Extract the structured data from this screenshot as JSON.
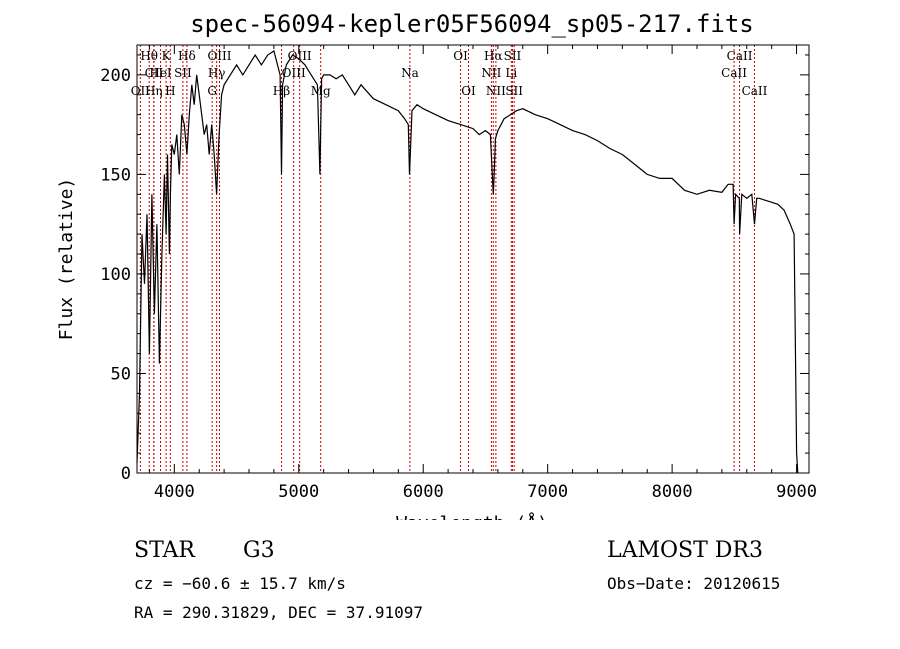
{
  "chart_data": {
    "type": "line",
    "title": "spec-56094-kepler05F56094_sp05-217.fits",
    "xlabel": "Wavelength (Å)",
    "ylabel": "Flux (relative)",
    "xlim": [
      3700,
      9100
    ],
    "ylim": [
      0,
      215
    ],
    "x_ticks": [
      4000,
      5000,
      6000,
      7000,
      8000,
      9000
    ],
    "y_ticks": [
      0,
      50,
      100,
      150,
      200
    ],
    "line_color": "#000000",
    "marker_color": "#cc0000",
    "spectrum": {
      "name": "Flux",
      "x": [
        3700,
        3720,
        3740,
        3760,
        3780,
        3800,
        3820,
        3840,
        3860,
        3880,
        3900,
        3920,
        3934,
        3945,
        3960,
        3968,
        3980,
        4000,
        4020,
        4040,
        4060,
        4080,
        4101,
        4120,
        4140,
        4160,
        4180,
        4200,
        4220,
        4240,
        4260,
        4280,
        4300,
        4320,
        4340,
        4360,
        4380,
        4400,
        4450,
        4500,
        4550,
        4600,
        4650,
        4700,
        4750,
        4800,
        4850,
        4861,
        4870,
        4900,
        4950,
        5000,
        5050,
        5100,
        5150,
        5170,
        5183,
        5200,
        5250,
        5300,
        5350,
        5400,
        5450,
        5500,
        5600,
        5700,
        5800,
        5850,
        5880,
        5890,
        5896,
        5910,
        5950,
        6000,
        6100,
        6200,
        6300,
        6400,
        6450,
        6500,
        6540,
        6555,
        6563,
        6570,
        6580,
        6600,
        6650,
        6700,
        6750,
        6800,
        6900,
        7000,
        7100,
        7200,
        7300,
        7400,
        7500,
        7600,
        7700,
        7800,
        7900,
        8000,
        8100,
        8200,
        8300,
        8400,
        8450,
        8490,
        8498,
        8510,
        8540,
        8542,
        8560,
        8600,
        8640,
        8662,
        8680,
        8700,
        8750,
        8800,
        8850,
        8900,
        8950,
        8980,
        9000,
        9010
      ],
      "values": [
        5,
        40,
        120,
        95,
        130,
        60,
        140,
        80,
        125,
        55,
        110,
        150,
        120,
        160,
        110,
        140,
        165,
        160,
        170,
        150,
        180,
        175,
        160,
        180,
        195,
        185,
        200,
        190,
        180,
        170,
        175,
        160,
        175,
        160,
        140,
        170,
        190,
        195,
        200,
        205,
        200,
        205,
        210,
        205,
        210,
        212,
        200,
        150,
        195,
        205,
        210,
        208,
        205,
        200,
        195,
        150,
        198,
        200,
        200,
        198,
        200,
        195,
        190,
        195,
        188,
        185,
        182,
        178,
        175,
        150,
        160,
        182,
        185,
        183,
        180,
        177,
        175,
        173,
        170,
        172,
        170,
        150,
        140,
        150,
        168,
        172,
        178,
        180,
        182,
        183,
        180,
        178,
        175,
        172,
        170,
        167,
        163,
        160,
        155,
        150,
        148,
        148,
        142,
        140,
        142,
        141,
        145,
        145,
        125,
        140,
        138,
        120,
        140,
        138,
        140,
        125,
        138,
        138,
        137,
        136,
        135,
        132,
        125,
        120,
        10,
        0
      ]
    },
    "line_markers": [
      {
        "label": "Hθ",
        "x": 3798,
        "row": 0
      },
      {
        "label": "CII",
        "x": 3836,
        "row": 1
      },
      {
        "label": "OII",
        "x": 3727,
        "row": 2
      },
      {
        "label": "K",
        "x": 3934,
        "row": 0
      },
      {
        "label": "HeI",
        "x": 3889,
        "row": 1
      },
      {
        "label": "Hη",
        "x": 3835,
        "row": 2
      },
      {
        "label": "Hδ",
        "x": 4101,
        "row": 0
      },
      {
        "label": "SII",
        "x": 4069,
        "row": 1
      },
      {
        "label": "H",
        "x": 3968,
        "row": 2
      },
      {
        "label": "OIII",
        "x": 4363,
        "row": 0
      },
      {
        "label": "Hγ",
        "x": 4340,
        "row": 1
      },
      {
        "label": "G",
        "x": 4304,
        "row": 2
      },
      {
        "label": "OIII",
        "x": 5007,
        "row": 0
      },
      {
        "label": "OIII",
        "x": 4959,
        "row": 1
      },
      {
        "label": "Hβ",
        "x": 4861,
        "row": 2
      },
      {
        "label": "Mg",
        "x": 5176,
        "row": 2
      },
      {
        "label": "Na",
        "x": 5893,
        "row": 1
      },
      {
        "label": "OI",
        "x": 6300,
        "row": 0
      },
      {
        "label": "OI",
        "x": 6364,
        "row": 2
      },
      {
        "label": "Hα",
        "x": 6563,
        "row": 0
      },
      {
        "label": "SII",
        "x": 6717,
        "row": 0
      },
      {
        "label": "NII",
        "x": 6548,
        "row": 1
      },
      {
        "label": "Li",
        "x": 6708,
        "row": 1
      },
      {
        "label": "NII",
        "x": 6584,
        "row": 2
      },
      {
        "label": "SII",
        "x": 6731,
        "row": 2
      },
      {
        "label": "CaII",
        "x": 8542,
        "row": 0
      },
      {
        "label": "CaII",
        "x": 8498,
        "row": 1
      },
      {
        "label": "CaII",
        "x": 8662,
        "row": 2
      }
    ]
  },
  "info": {
    "object_class": "STAR",
    "subclass": "G3",
    "survey": "LAMOST DR3",
    "redshift": "cz = −60.6 ± 15.7 km/s",
    "obs_date": "Obs−Date: 20120615",
    "coords": "RA = 290.31829, DEC =  37.91097"
  }
}
